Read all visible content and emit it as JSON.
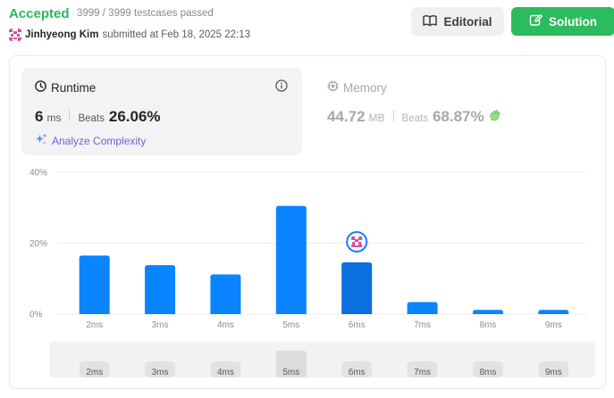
{
  "header": {
    "status": "Accepted",
    "testcases": "3999 / 3999 testcases passed",
    "author": "Jinhyeong Kim",
    "submitted": "submitted at Feb 18, 2025 22:13",
    "editorial_label": "Editorial",
    "solution_label": "Solution"
  },
  "runtime": {
    "title": "Runtime",
    "value": "6",
    "unit": "ms",
    "beats_label": "Beats",
    "beats": "26.06%",
    "analyze_label": "Analyze Complexity"
  },
  "memory": {
    "title": "Memory",
    "value": "44.72",
    "unit": "MB",
    "beats_label": "Beats",
    "beats": "68.87%"
  },
  "colors": {
    "accepted": "#2db55d",
    "solution_button": "#2cbb5d",
    "bar": "#0a84ff",
    "bar_selected": "#0c6fe0",
    "analyze": "#7b5bd6"
  },
  "chart_data": {
    "type": "bar",
    "categories": [
      "2ms",
      "3ms",
      "4ms",
      "5ms",
      "6ms",
      "7ms",
      "8ms",
      "9ms"
    ],
    "values": [
      16.5,
      13.8,
      11.2,
      30.5,
      14.6,
      3.4,
      1.2,
      1.2
    ],
    "ylim": [
      0,
      40
    ],
    "yticks": [
      "0%",
      "20%",
      "40%"
    ],
    "ytick_values": [
      0,
      20,
      40
    ],
    "grid": true,
    "selected": "6ms",
    "selector_labels": [
      "2ms",
      "3ms",
      "4ms",
      "5ms",
      "6ms",
      "7ms",
      "8ms",
      "9ms"
    ],
    "selector_highlight": "5ms"
  }
}
